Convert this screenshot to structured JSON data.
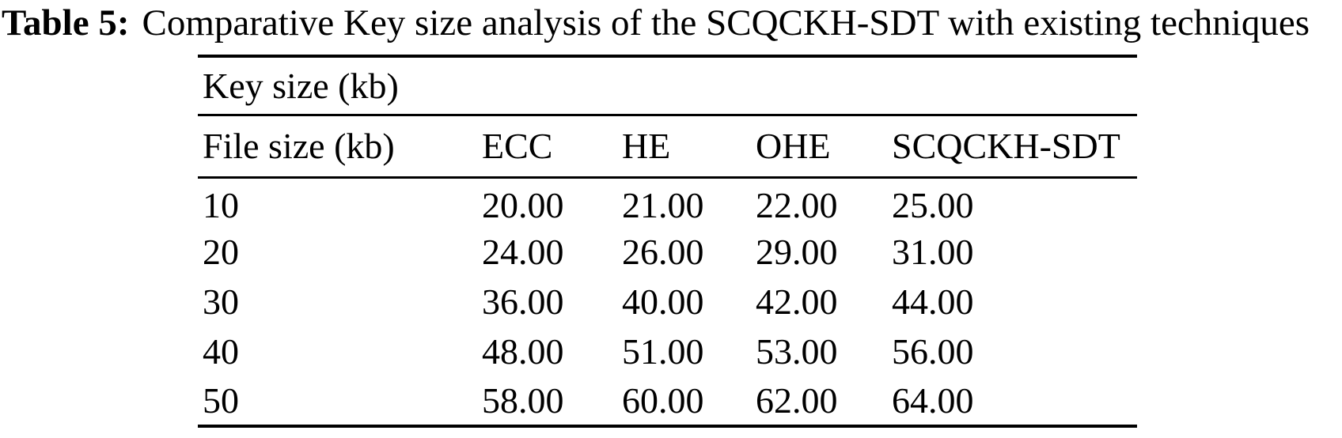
{
  "caption": {
    "label": "Table 5:",
    "text": "Comparative Key size analysis of the SCQCKH-SDT with existing techniques"
  },
  "chart_data": {
    "type": "table",
    "title": "Table 5: Comparative Key size analysis of the SCQCKH-SDT with existing techniques",
    "group_header": "Key size (kb)",
    "columns": [
      "File size (kb)",
      "ECC",
      "HE",
      "OHE",
      "SCQCKH-SDT"
    ],
    "rows": [
      [
        "10",
        "20.00",
        "21.00",
        "22.00",
        "25.00"
      ],
      [
        "20",
        "24.00",
        "26.00",
        "29.00",
        "31.00"
      ],
      [
        "30",
        "36.00",
        "40.00",
        "42.00",
        "44.00"
      ],
      [
        "40",
        "48.00",
        "51.00",
        "53.00",
        "56.00"
      ],
      [
        "50",
        "58.00",
        "60.00",
        "62.00",
        "64.00"
      ]
    ]
  },
  "colors": {
    "text": "#000000",
    "background": "#ffffff",
    "rule": "#000000"
  }
}
